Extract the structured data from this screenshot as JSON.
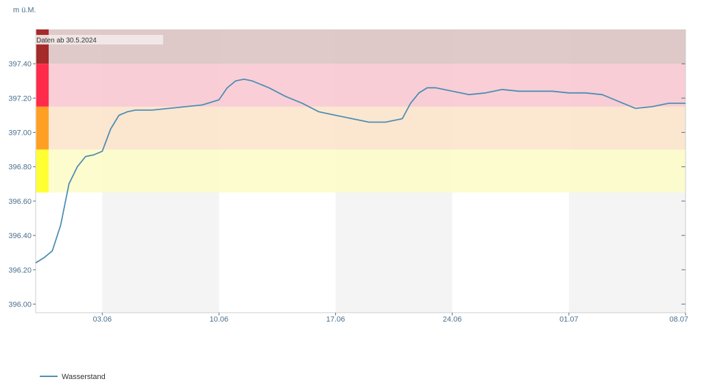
{
  "chart_data": {
    "type": "line",
    "title": "",
    "ylabel": "m ü.M.",
    "xlabel": "",
    "ylim": [
      395.95,
      397.6
    ],
    "xlim": [
      "2024-05-30",
      "2024-07-08"
    ],
    "y_ticks": [
      396.0,
      396.2,
      396.4,
      396.6,
      396.8,
      397.0,
      397.2,
      397.4
    ],
    "y_tick_labels": [
      "396.00",
      "396.20",
      "396.40",
      "396.60",
      "396.80",
      "397.00",
      "397.20",
      "397.40"
    ],
    "x_ticks": [
      "2024-06-03",
      "2024-06-10",
      "2024-06-17",
      "2024-06-24",
      "2024-07-01",
      "2024-07-08"
    ],
    "x_tick_labels": [
      "03.06",
      "10.06",
      "17.06",
      "24.06",
      "01.07",
      "08.07"
    ],
    "weekend_bands": [
      [
        "2024-06-03",
        "2024-06-10"
      ],
      [
        "2024-06-17",
        "2024-06-24"
      ],
      [
        "2024-07-01",
        "2024-07-08"
      ]
    ],
    "danger_levels": [
      {
        "from": 397.4,
        "to": 397.6,
        "color": "#a52a2a",
        "fill": "#d9c0c0"
      },
      {
        "from": 397.15,
        "to": 397.4,
        "color": "#ff2b4a",
        "fill": "#f8c6cf"
      },
      {
        "from": 396.9,
        "to": 397.15,
        "color": "#ffa024",
        "fill": "#fbe3c9"
      },
      {
        "from": 396.65,
        "to": 396.9,
        "color": "#ffff33",
        "fill": "#fdfcc6"
      }
    ],
    "annotation": "Daten ab 30.5.2024",
    "series": [
      {
        "name": "Wasserstand",
        "color": "#4a8db4",
        "x": [
          "2024-05-30",
          "2024-05-30T12:00",
          "2024-05-31",
          "2024-05-31T12:00",
          "2024-06-01",
          "2024-06-01T12:00",
          "2024-06-02",
          "2024-06-02T12:00",
          "2024-06-03",
          "2024-06-03T12:00",
          "2024-06-04",
          "2024-06-04T12:00",
          "2024-06-05",
          "2024-06-06",
          "2024-06-07",
          "2024-06-08",
          "2024-06-09",
          "2024-06-10",
          "2024-06-10T12:00",
          "2024-06-11",
          "2024-06-11T12:00",
          "2024-06-12",
          "2024-06-13",
          "2024-06-14",
          "2024-06-15",
          "2024-06-16",
          "2024-06-17",
          "2024-06-18",
          "2024-06-19",
          "2024-06-20",
          "2024-06-21",
          "2024-06-21T12:00",
          "2024-06-22",
          "2024-06-22T12:00",
          "2024-06-23",
          "2024-06-24",
          "2024-06-25",
          "2024-06-26",
          "2024-06-27",
          "2024-06-28",
          "2024-06-29",
          "2024-06-30",
          "2024-07-01",
          "2024-07-02",
          "2024-07-03",
          "2024-07-04",
          "2024-07-05",
          "2024-07-06",
          "2024-07-07",
          "2024-07-08"
        ],
        "values": [
          396.24,
          396.27,
          396.31,
          396.46,
          396.7,
          396.8,
          396.86,
          396.87,
          396.89,
          397.02,
          397.1,
          397.12,
          397.13,
          397.13,
          397.14,
          397.15,
          397.16,
          397.19,
          397.26,
          397.3,
          397.31,
          397.3,
          397.26,
          397.21,
          397.17,
          397.12,
          397.1,
          397.08,
          397.06,
          397.06,
          397.08,
          397.17,
          397.23,
          397.26,
          397.26,
          397.24,
          397.22,
          397.23,
          397.25,
          397.24,
          397.24,
          397.24,
          397.23,
          397.23,
          397.22,
          397.18,
          397.14,
          397.15,
          397.17,
          397.17
        ]
      }
    ],
    "legend": {
      "placement": "bottom-left",
      "items": [
        "Wasserstand"
      ]
    },
    "grid": false
  }
}
